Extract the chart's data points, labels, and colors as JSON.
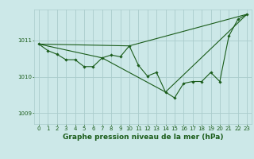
{
  "title": "Graphe pression niveau de la mer (hPa)",
  "bg_color": "#cce8e8",
  "plot_bg_color": "#cce8e8",
  "grid_color": "#aacccc",
  "line_color": "#1a5c1a",
  "marker_color": "#1a5c1a",
  "ylim": [
    1008.7,
    1011.85
  ],
  "xlim": [
    -0.5,
    23.5
  ],
  "yticks": [
    1009,
    1010,
    1011
  ],
  "xticks": [
    0,
    1,
    2,
    3,
    4,
    5,
    6,
    7,
    8,
    9,
    10,
    11,
    12,
    13,
    14,
    15,
    16,
    17,
    18,
    19,
    20,
    21,
    22,
    23
  ],
  "series": [
    [
      0,
      1010.9
    ],
    [
      1,
      1010.72
    ],
    [
      2,
      1010.62
    ],
    [
      3,
      1010.47
    ],
    [
      4,
      1010.47
    ],
    [
      5,
      1010.28
    ],
    [
      6,
      1010.28
    ],
    [
      7,
      1010.52
    ],
    [
      8,
      1010.6
    ],
    [
      9,
      1010.55
    ],
    [
      10,
      1010.85
    ],
    [
      11,
      1010.32
    ],
    [
      12,
      1010.02
    ],
    [
      13,
      1010.12
    ],
    [
      14,
      1009.58
    ],
    [
      15,
      1009.42
    ],
    [
      16,
      1009.82
    ],
    [
      17,
      1009.87
    ],
    [
      18,
      1009.87
    ],
    [
      19,
      1010.12
    ],
    [
      20,
      1009.87
    ],
    [
      21,
      1011.12
    ],
    [
      22,
      1011.58
    ],
    [
      23,
      1011.72
    ]
  ],
  "series2": [
    [
      0,
      1010.9
    ],
    [
      10,
      1010.85
    ],
    [
      23,
      1011.72
    ]
  ],
  "series3": [
    [
      0,
      1010.9
    ],
    [
      7,
      1010.52
    ],
    [
      14,
      1009.58
    ],
    [
      23,
      1011.72
    ]
  ],
  "title_fontsize": 6.5,
  "tick_fontsize": 5.0
}
